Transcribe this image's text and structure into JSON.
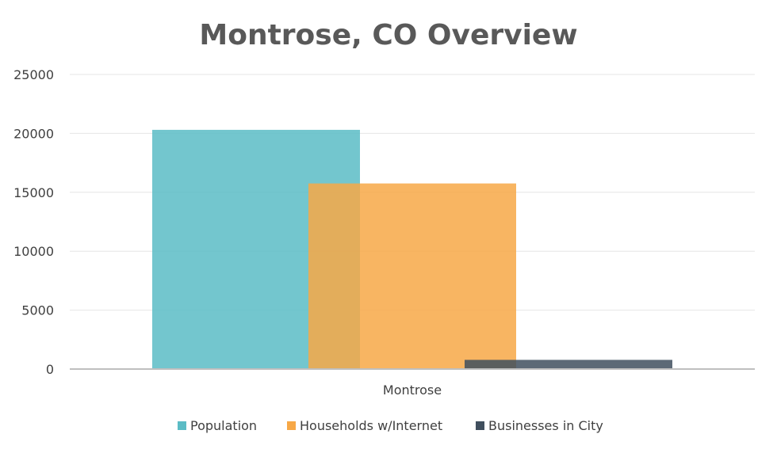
{
  "chart_data": {
    "type": "bar",
    "title": "Montrose, CO Overview",
    "categories": [
      "Montrose"
    ],
    "series": [
      {
        "name": "Population",
        "values": [
          20300
        ],
        "color": "#5bbcc5"
      },
      {
        "name": "Households w/Internet",
        "values": [
          15750
        ],
        "color": "#f7a847"
      },
      {
        "name": "Businesses in City",
        "values": [
          780
        ],
        "color": "#404f5e"
      }
    ],
    "ylim": [
      0,
      25000
    ],
    "yticks": [
      0,
      5000,
      10000,
      15000,
      20000,
      25000
    ],
    "grid": true,
    "legend": "bottom",
    "bar_overlap": true,
    "bar_opacity": 0.85
  }
}
